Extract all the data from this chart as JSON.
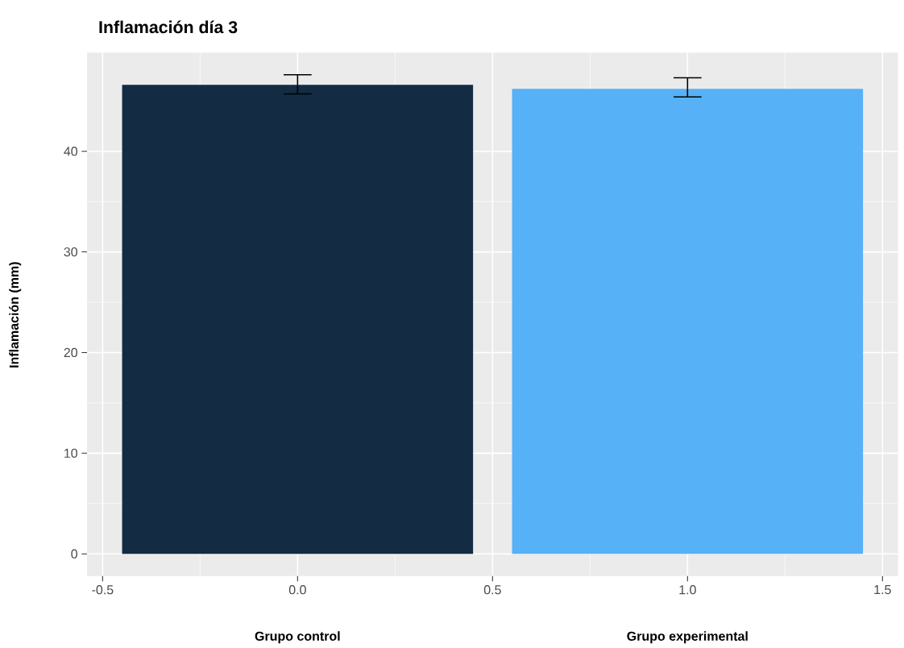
{
  "chart_data": {
    "type": "bar",
    "title": "Inflamación día 3",
    "ylabel": "Inflamación (mm)",
    "x": [
      0,
      1
    ],
    "values": [
      46.6,
      46.2
    ],
    "colors": [
      "#132b43",
      "#56b1f7"
    ],
    "errors": [
      [
        45.7,
        47.6
      ],
      [
        45.4,
        47.3
      ]
    ],
    "xlim": [
      -0.54,
      1.54
    ],
    "ylim": [
      -2.2,
      49.8
    ],
    "xticks": [
      -0.5,
      {
        "value": 0,
        "label": "0.0"
      },
      0.5,
      {
        "value": 1,
        "label": "1.0"
      },
      1.5
    ],
    "yticks": [
      0,
      10,
      20,
      30,
      40
    ],
    "grid": true,
    "annotations": [
      "Grupo control",
      "Grupo experimental"
    ]
  }
}
